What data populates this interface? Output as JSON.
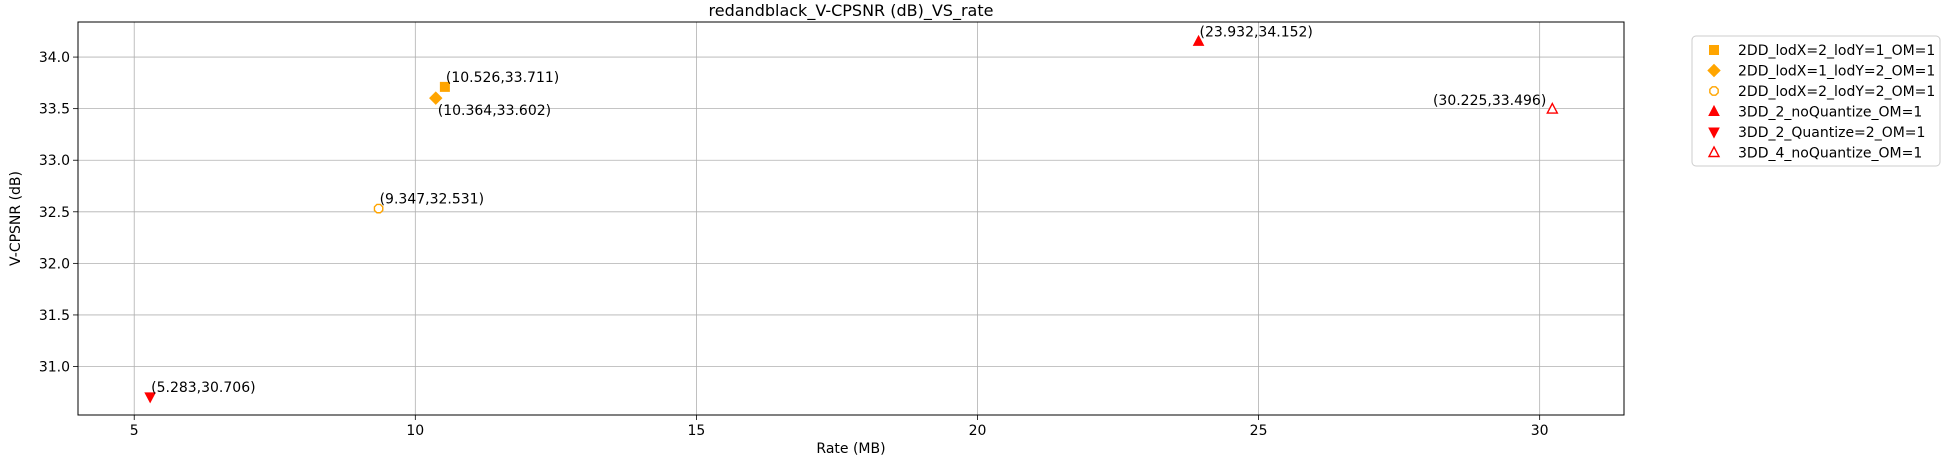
{
  "chart_data": {
    "type": "scatter",
    "title": "redandblack_V-CPSNR (dB)_VS_rate",
    "xlabel": "Rate (MB)",
    "ylabel": "V-CPSNR (dB)",
    "xlim": [
      4.0,
      31.5
    ],
    "ylim": [
      30.53,
      34.34
    ],
    "xticks": [
      5,
      10,
      15,
      20,
      25,
      30
    ],
    "yticks": [
      31.0,
      31.5,
      32.0,
      32.5,
      33.0,
      33.5,
      34.0
    ],
    "xtick_labels": [
      "5",
      "10",
      "15",
      "20",
      "25",
      "30"
    ],
    "ytick_labels": [
      "31.0",
      "31.5",
      "32.0",
      "32.5",
      "33.0",
      "33.5",
      "34.0"
    ],
    "grid": true,
    "legend_position": "outside-top-right",
    "series": [
      {
        "name": "2DD_lodX=2_lodY=1_OM=1",
        "marker": "square",
        "color": "#ffa500",
        "filled": true,
        "points": [
          {
            "x": 10.526,
            "y": 33.711,
            "label": "(10.526,33.711)",
            "label_pos": "above-right"
          }
        ]
      },
      {
        "name": "2DD_lodX=1_lodY=2_OM=1",
        "marker": "diamond",
        "color": "#ffa500",
        "filled": true,
        "points": [
          {
            "x": 10.364,
            "y": 33.602,
            "label": "(10.364,33.602)",
            "label_pos": "below-right"
          }
        ]
      },
      {
        "name": "2DD_lodX=2_lodY=2_OM=1",
        "marker": "octagon",
        "color": "#ffa500",
        "filled": false,
        "points": [
          {
            "x": 9.347,
            "y": 32.531,
            "label": "(9.347,32.531)",
            "label_pos": "above-right"
          }
        ]
      },
      {
        "name": "3DD_2_noQuantize_OM=1",
        "marker": "triangle-up",
        "color": "#ff0000",
        "filled": true,
        "points": [
          {
            "x": 23.932,
            "y": 34.152,
            "label": "(23.932,34.152)",
            "label_pos": "above-right"
          }
        ]
      },
      {
        "name": "3DD_2_Quantize=2_OM=1",
        "marker": "triangle-down",
        "color": "#ff0000",
        "filled": true,
        "points": [
          {
            "x": 5.283,
            "y": 30.706,
            "label": "(5.283,30.706)",
            "label_pos": "above-right"
          }
        ]
      },
      {
        "name": "3DD_4_noQuantize_OM=1",
        "marker": "triangle-up",
        "color": "#ff0000",
        "filled": false,
        "points": [
          {
            "x": 30.225,
            "y": 33.496,
            "label": "(30.225,33.496)",
            "label_pos": "above-left"
          }
        ]
      }
    ]
  }
}
